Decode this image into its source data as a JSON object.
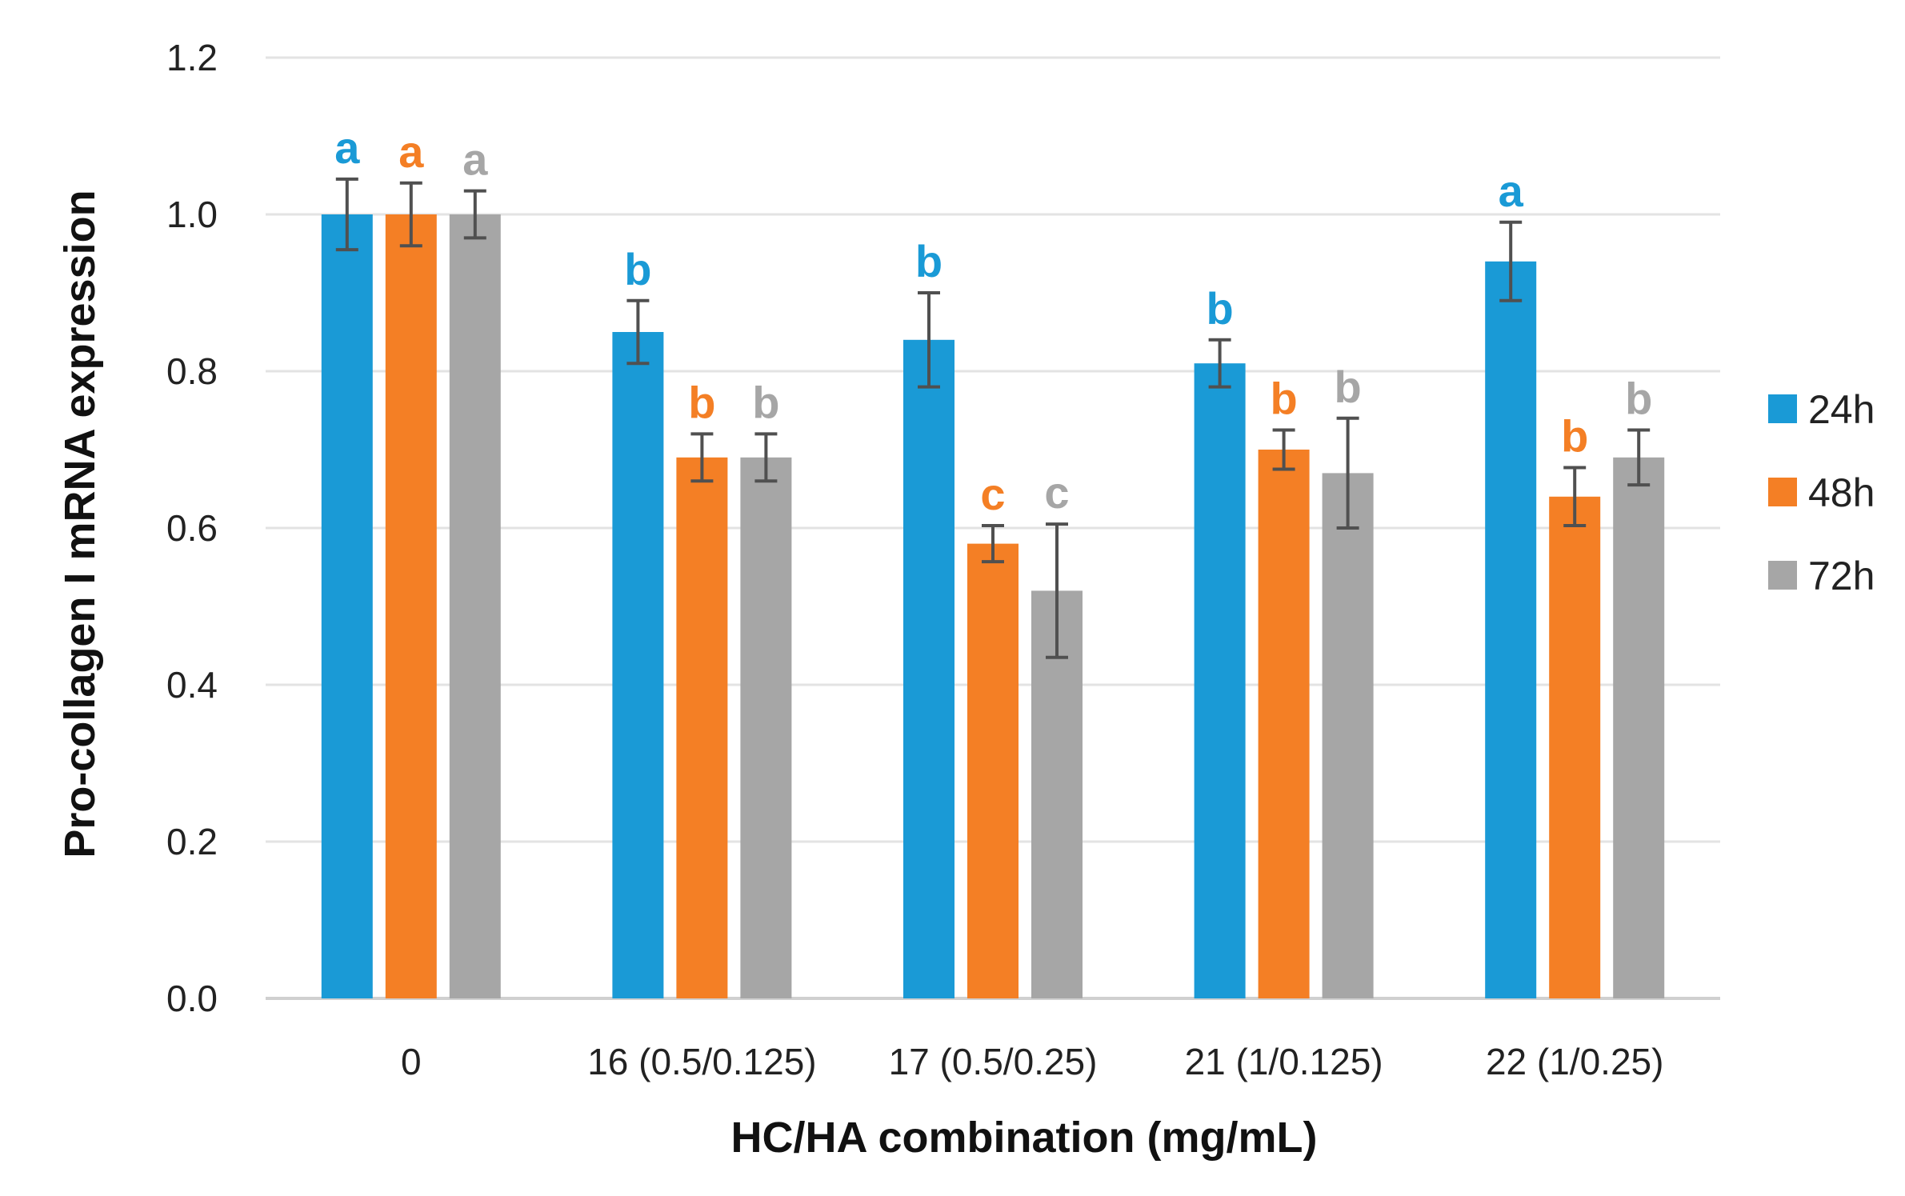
{
  "chart_data": {
    "type": "bar",
    "title": "",
    "xlabel": "HC/HA combination (mg/mL)",
    "ylabel": "Pro-collagen I mRNA expression",
    "ylim": [
      0,
      1.2
    ],
    "yticks": [
      "0.0",
      "0.2",
      "0.4",
      "0.6",
      "0.8",
      "1.0",
      "1.2"
    ],
    "grid": true,
    "legend_position": "right",
    "categories": [
      "0",
      "16 (0.5/0.125)",
      "17 (0.5/0.25)",
      "21 (1/0.125)",
      "22 (1/0.25)"
    ],
    "series": [
      {
        "name": "24h",
        "color": "#1a9ad6",
        "values": [
          1.0,
          0.85,
          0.84,
          0.81,
          0.94
        ],
        "errors": [
          0.045,
          0.04,
          0.06,
          0.03,
          0.05
        ],
        "letters": [
          "a",
          "b",
          "b",
          "b",
          "a"
        ]
      },
      {
        "name": "48h",
        "color": "#f47f25",
        "values": [
          1.0,
          0.69,
          0.58,
          0.7,
          0.64
        ],
        "errors": [
          0.04,
          0.03,
          0.023,
          0.025,
          0.037
        ],
        "letters": [
          "a",
          "b",
          "c",
          "b",
          "b"
        ]
      },
      {
        "name": "72h",
        "color": "#a6a6a6",
        "values": [
          1.0,
          0.69,
          0.52,
          0.67,
          0.69
        ],
        "errors": [
          0.03,
          0.03,
          0.085,
          0.07,
          0.035
        ],
        "letters": [
          "a",
          "b",
          "c",
          "b",
          "b"
        ]
      }
    ]
  }
}
